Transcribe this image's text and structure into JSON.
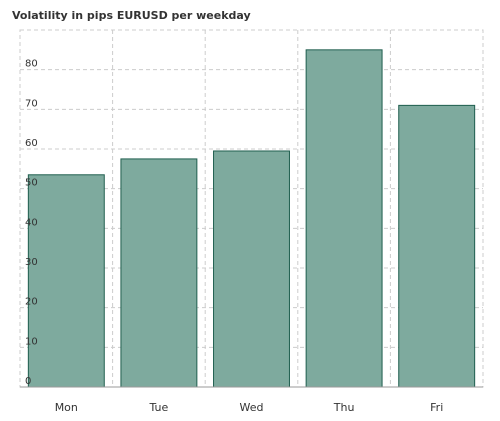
{
  "chart_data": {
    "type": "bar",
    "title": "Volatility in pips EURUSD per weekday",
    "categories": [
      "Mon",
      "Tue",
      "Wed",
      "Thu",
      "Fri"
    ],
    "values": [
      53.5,
      57.5,
      59.5,
      85,
      71
    ],
    "ylim": [
      0,
      90
    ],
    "yticks": [
      0,
      10,
      20,
      30,
      40,
      50,
      60,
      70,
      80
    ],
    "xlabel": "",
    "ylabel": "",
    "grid": true,
    "colors": {
      "bar_fill": "#7eaa9e",
      "bar_stroke": "#1f5e4e",
      "grid": "#cccccc"
    }
  }
}
